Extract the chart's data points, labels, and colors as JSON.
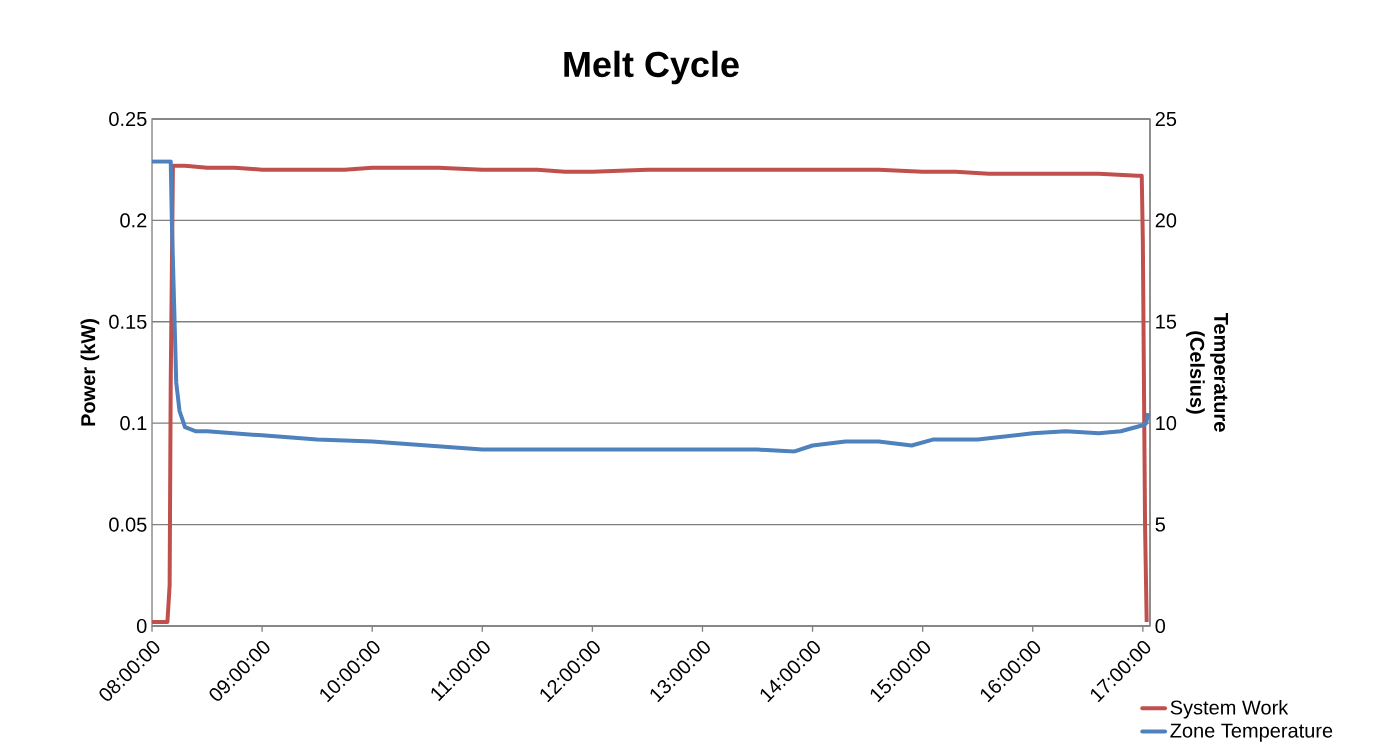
{
  "chart_data": {
    "type": "line",
    "title": "Melt Cycle",
    "ylabel": "Power (kW)",
    "y2label": "Temperature (Celsius)",
    "xlim": [
      8,
      17.065
    ],
    "xticks": [
      {
        "value": 8,
        "label": "08:00:00"
      },
      {
        "value": 9,
        "label": "09:00:00"
      },
      {
        "value": 10,
        "label": "10:00:00"
      },
      {
        "value": 11,
        "label": "11:00:00"
      },
      {
        "value": 12,
        "label": "12:00:00"
      },
      {
        "value": 13,
        "label": "13:00:00"
      },
      {
        "value": 14,
        "label": "14:00:00"
      },
      {
        "value": 15,
        "label": "15:00:00"
      },
      {
        "value": 16,
        "label": "16:00:00"
      },
      {
        "value": 17,
        "label": "17:00:00"
      }
    ],
    "ylim": [
      0,
      0.25
    ],
    "yticks": [
      0,
      0.05,
      0.1,
      0.15,
      0.2,
      0.25
    ],
    "y2lim": [
      0,
      25
    ],
    "y2ticks": [
      0,
      5,
      10,
      15,
      20,
      25
    ],
    "grid": "y",
    "legend": "bottom right",
    "series": [
      {
        "name": "System Work",
        "color": "#c0504d",
        "x": [
          8.0,
          8.14,
          8.16,
          8.17,
          8.19,
          8.21,
          8.3,
          8.5,
          8.75,
          9.0,
          9.25,
          9.5,
          9.75,
          10.0,
          10.33,
          10.6,
          11.0,
          11.3,
          11.5,
          11.75,
          12.0,
          12.5,
          13.0,
          13.5,
          14.0,
          14.3,
          14.6,
          15.0,
          15.3,
          15.6,
          16.0,
          16.3,
          16.6,
          16.95,
          16.99,
          17.0,
          17.02,
          17.035
        ],
        "values": [
          0.002,
          0.002,
          0.02,
          0.12,
          0.227,
          0.227,
          0.227,
          0.226,
          0.226,
          0.225,
          0.225,
          0.225,
          0.225,
          0.226,
          0.226,
          0.226,
          0.225,
          0.225,
          0.225,
          0.224,
          0.224,
          0.225,
          0.225,
          0.225,
          0.225,
          0.225,
          0.225,
          0.224,
          0.224,
          0.223,
          0.223,
          0.223,
          0.223,
          0.222,
          0.222,
          0.19,
          0.05,
          0.002
        ]
      },
      {
        "name": "Zone Temperature",
        "color": "#4f81bd",
        "axis": "y2",
        "x": [
          8.0,
          8.1,
          8.17,
          8.18,
          8.2,
          8.22,
          8.25,
          8.3,
          8.4,
          8.5,
          9.0,
          9.5,
          10.0,
          10.5,
          11.0,
          11.5,
          12.0,
          12.5,
          13.0,
          13.5,
          13.83,
          14.0,
          14.3,
          14.6,
          14.9,
          15.1,
          15.5,
          16.0,
          16.3,
          16.6,
          16.8,
          17.0,
          17.03,
          17.05
        ],
        "values": [
          22.9,
          22.9,
          22.9,
          20,
          16,
          12,
          10.6,
          9.8,
          9.6,
          9.6,
          9.4,
          9.2,
          9.1,
          8.9,
          8.7,
          8.7,
          8.7,
          8.7,
          8.7,
          8.7,
          8.6,
          8.9,
          9.1,
          9.1,
          8.9,
          9.2,
          9.2,
          9.5,
          9.6,
          9.5,
          9.6,
          9.9,
          10.0,
          10.5
        ]
      }
    ]
  }
}
